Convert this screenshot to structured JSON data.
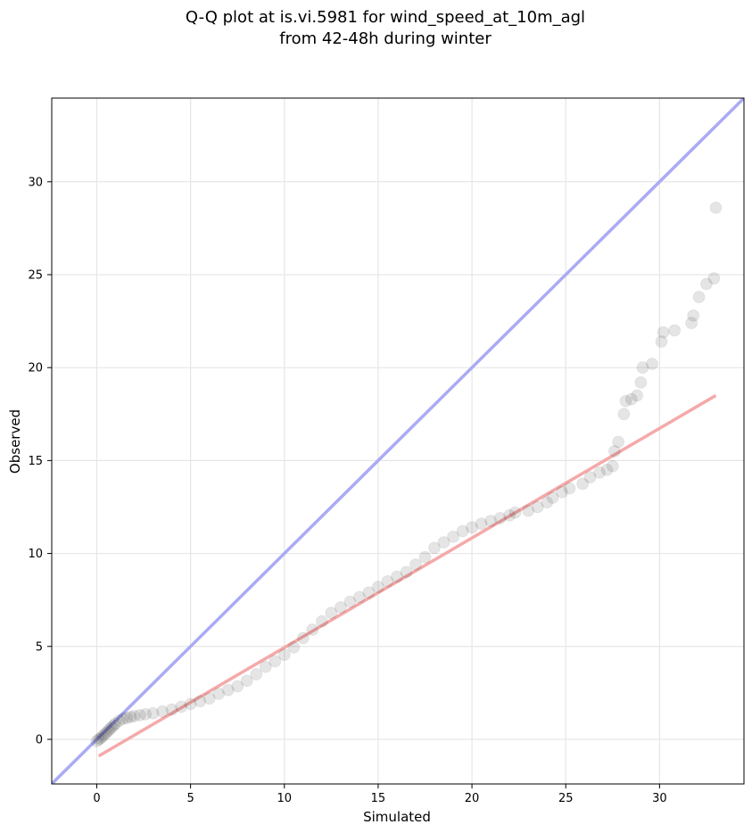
{
  "chart_data": {
    "type": "scatter",
    "title_line1": "Q-Q plot at is.vi.5981 for wind_speed_at_10m_agl",
    "title_line2": "from 42-48h during winter",
    "xlabel": "Simulated",
    "ylabel": "Observed",
    "xlim": [
      -2.4,
      34.5
    ],
    "ylim": [
      -2.4,
      34.5
    ],
    "xticks": [
      0,
      5,
      10,
      15,
      20,
      25,
      30
    ],
    "yticks": [
      0,
      5,
      10,
      15,
      20,
      25,
      30
    ],
    "grid": true,
    "colors": {
      "points": "#000000",
      "identity_line": "#aaaaf5",
      "fit_line": "#f5a9a9"
    },
    "identity_line": {
      "x": [
        -2.4,
        34.5
      ],
      "y": [
        -2.4,
        34.5
      ]
    },
    "fit_line": {
      "x": [
        0.1,
        33.0
      ],
      "y": [
        -0.9,
        18.5
      ]
    },
    "series": [
      {
        "x": [
          0.0,
          0.1,
          0.2,
          0.3,
          0.4,
          0.5,
          0.6,
          0.7,
          0.8,
          0.9,
          1.0,
          1.2,
          1.4,
          1.6,
          1.8,
          2.0,
          2.3,
          2.6,
          3.0,
          3.5,
          4.0,
          4.5,
          5.0,
          5.5,
          6.0,
          6.5,
          7.0,
          7.5,
          8.0,
          8.5,
          9.0,
          9.5,
          10.0,
          10.5,
          11.0,
          11.5,
          12.0,
          12.5,
          13.0,
          13.5,
          14.0,
          14.5,
          15.0,
          15.5,
          16.0,
          16.5,
          17.0,
          17.5,
          18.0,
          18.5,
          19.0,
          19.5,
          20.0,
          20.5,
          21.0,
          21.5,
          22.0,
          22.3,
          23.0,
          23.5,
          24.0,
          24.3,
          24.8,
          25.2,
          25.9,
          26.3,
          26.8,
          27.2,
          27.5,
          27.6,
          27.8,
          28.1,
          28.2,
          28.5,
          28.8,
          29.0,
          29.1,
          29.6,
          30.1,
          30.2,
          30.8,
          31.7,
          31.8,
          32.1,
          32.5,
          32.9,
          33.0
        ],
        "y": [
          -0.1,
          0.0,
          0.05,
          0.15,
          0.25,
          0.35,
          0.45,
          0.55,
          0.65,
          0.75,
          0.85,
          1.0,
          1.1,
          1.15,
          1.2,
          1.25,
          1.3,
          1.35,
          1.4,
          1.5,
          1.6,
          1.75,
          1.9,
          2.05,
          2.2,
          2.45,
          2.65,
          2.85,
          3.15,
          3.5,
          3.9,
          4.2,
          4.55,
          4.95,
          5.45,
          5.9,
          6.35,
          6.8,
          7.1,
          7.4,
          7.65,
          7.9,
          8.2,
          8.5,
          8.75,
          9.0,
          9.4,
          9.8,
          10.3,
          10.6,
          10.9,
          11.2,
          11.4,
          11.6,
          11.75,
          11.9,
          12.05,
          12.2,
          12.3,
          12.5,
          12.75,
          13.0,
          13.3,
          13.5,
          13.75,
          14.1,
          14.35,
          14.5,
          14.7,
          15.5,
          16.0,
          17.5,
          18.2,
          18.3,
          18.5,
          19.2,
          20.0,
          20.2,
          21.4,
          21.9,
          22.0,
          22.4,
          22.8,
          23.8,
          24.5,
          24.8,
          28.6
        ]
      }
    ]
  }
}
